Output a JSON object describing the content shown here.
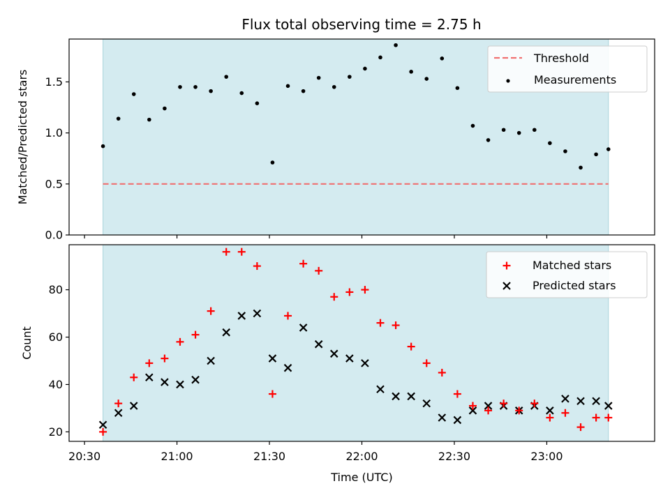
{
  "chart_data": [
    {
      "type": "scatter",
      "title": "Flux total observing time = 2.75 h",
      "ylabel": "Matched/Predicted stars",
      "ylim": [
        0,
        1.92
      ],
      "yticks": [
        "0.0",
        "0.5",
        "1.0",
        "1.5"
      ],
      "xlim": [
        "20:25",
        "23:35"
      ],
      "shaded_span": [
        "20:36",
        "23:20"
      ],
      "threshold": {
        "name": "Threshold",
        "value": 0.5,
        "color": "#f07070"
      },
      "measurements": {
        "name": "Measurements",
        "color": "#000000",
        "x": [
          "20:36",
          "20:41",
          "20:46",
          "20:51",
          "20:56",
          "21:01",
          "21:06",
          "21:11",
          "21:16",
          "21:21",
          "21:26",
          "21:31",
          "21:36",
          "21:41",
          "21:46",
          "21:51",
          "21:56",
          "22:01",
          "22:06",
          "22:11",
          "22:16",
          "22:21",
          "22:26",
          "22:31",
          "22:36",
          "22:41",
          "22:46",
          "22:51",
          "22:56",
          "23:01",
          "23:06",
          "23:11",
          "23:16",
          "23:20"
        ],
        "y": [
          0.87,
          1.14,
          1.38,
          1.13,
          1.24,
          1.45,
          1.45,
          1.41,
          1.55,
          1.39,
          1.29,
          0.71,
          1.46,
          1.41,
          1.54,
          1.45,
          1.55,
          1.63,
          1.74,
          1.86,
          1.6,
          1.53,
          1.73,
          1.44,
          1.07,
          0.93,
          1.03,
          1.0,
          1.03,
          0.9,
          0.82,
          0.66,
          0.79,
          0.84
        ]
      }
    },
    {
      "type": "scatter",
      "xlabel": "Time (UTC)",
      "ylabel": "Count",
      "ylim": [
        16,
        99
      ],
      "yticks": [
        "20",
        "40",
        "60",
        "80"
      ],
      "xlim": [
        "20:25",
        "23:35"
      ],
      "xticks": [
        "20:30",
        "21:00",
        "21:30",
        "22:00",
        "22:30",
        "23:00"
      ],
      "shaded_span": [
        "20:36",
        "23:20"
      ],
      "series": [
        {
          "name": "Matched stars",
          "marker": "plus",
          "color": "#ff0000",
          "x": [
            "20:36",
            "20:41",
            "20:46",
            "20:51",
            "20:56",
            "21:01",
            "21:06",
            "21:11",
            "21:16",
            "21:21",
            "21:26",
            "21:31",
            "21:36",
            "21:41",
            "21:46",
            "21:51",
            "21:56",
            "22:01",
            "22:06",
            "22:11",
            "22:16",
            "22:21",
            "22:26",
            "22:31",
            "22:36",
            "22:41",
            "22:46",
            "22:51",
            "22:56",
            "23:01",
            "23:06",
            "23:11",
            "23:16",
            "23:20"
          ],
          "values": [
            20,
            32,
            43,
            49,
            51,
            58,
            61,
            71,
            96,
            96,
            90,
            36,
            69,
            91,
            88,
            77,
            79,
            80,
            66,
            65,
            56,
            49,
            45,
            36,
            31,
            29,
            32,
            29,
            32,
            26,
            28,
            22,
            26,
            26
          ]
        },
        {
          "name": "Predicted stars",
          "marker": "x",
          "color": "#000000",
          "x": [
            "20:36",
            "20:41",
            "20:46",
            "20:51",
            "20:56",
            "21:01",
            "21:06",
            "21:11",
            "21:16",
            "21:21",
            "21:26",
            "21:31",
            "21:36",
            "21:41",
            "21:46",
            "21:51",
            "21:56",
            "22:01",
            "22:06",
            "22:11",
            "22:16",
            "22:21",
            "22:26",
            "22:31",
            "22:36",
            "22:41",
            "22:46",
            "22:51",
            "22:56",
            "23:01",
            "23:06",
            "23:11",
            "23:16",
            "23:20"
          ],
          "values": [
            23,
            28,
            31,
            43,
            41,
            40,
            42,
            50,
            62,
            69,
            70,
            51,
            47,
            64,
            57,
            53,
            51,
            49,
            38,
            35,
            35,
            32,
            26,
            25,
            29,
            31,
            31,
            29,
            31,
            29,
            34,
            33,
            33,
            31
          ]
        }
      ]
    }
  ],
  "colors": {
    "shade": "#d4ebf0",
    "shade_edge": "#a8d4dc"
  }
}
